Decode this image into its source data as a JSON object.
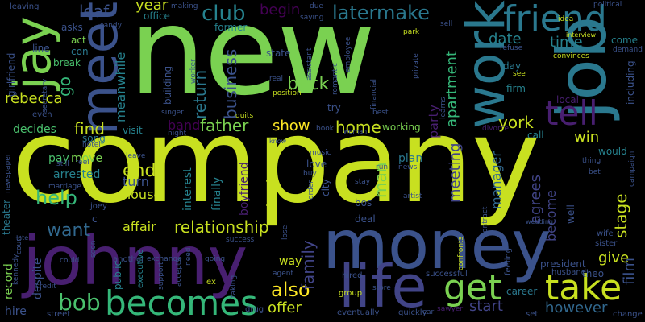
{
  "words": {
    "new": "new",
    "company": "company",
    "johnny": "johnny",
    "money": "money",
    "job": "job",
    "work": "work",
    "meet": "meet",
    "jay": "jay",
    "friend": "friend",
    "tell": "tell",
    "life": "life",
    "get": "get",
    "take": "take",
    "becomes": "becomes",
    "bob": "bob",
    "also": "also",
    "relationship": "relationship",
    "latermake": "latermake",
    "club": "club",
    "help": "help",
    "want": "want",
    "end": "end",
    "father": "father",
    "show": "show",
    "home": "home",
    "find": "find",
    "back": "back",
    "family": "family",
    "man": "man",
    "year": "year",
    "leaf": "leaf",
    "begin": "begin",
    "return": "return",
    "business": "business",
    "band": "band",
    "meanwhile": "meanwhile",
    "go": "go",
    "rebecca": "rebecca",
    "apartment": "apartment",
    "date": "date",
    "time": "time",
    "york": "york",
    "win": "win",
    "film": "film",
    "give": "give",
    "stage": "stage",
    "however": "however",
    "start": "start",
    "offer": "offer",
    "meeting": "meeting",
    "manager": "manager",
    "become": "become",
    "agrees": "agrees",
    "party": "party",
    "affair": "affair",
    "house": "house",
    "turn": "turn",
    "arrested": "arrested",
    "pay": "pay",
    "move": "move",
    "song": "song",
    "visit": "visit",
    "decides": "decides",
    "break": "break",
    "line": "line",
    "asks": "asks",
    "act": "act",
    "office": "office",
    "former": "former",
    "state": "state",
    "working": "working",
    "plan": "plan",
    "love": "love",
    "interest": "interest",
    "finally": "finally",
    "daughter": "daughter",
    "boyfriend": "boyfriend",
    "way": "way",
    "record": "record",
    "despite": "despite",
    "hire": "hire",
    "theater": "theater",
    "career": "career",
    "president": "president",
    "local": "local",
    "firm": "firm",
    "day": "day",
    "come": "come",
    "including": "including",
    "call": "call",
    "would": "would",
    "deal": "deal",
    "bos": "bos",
    "public": "public",
    "executive": "executive",
    "girlfriend": "girlfriend",
    "leaving": "leaving",
    "even": "even",
    "con": "con",
    "try": "try",
    "quits": "quits",
    "position": "position",
    "idea": "idea",
    "political": "political",
    "interview": "interview",
    "demand": "demand",
    "refuse": "refuse",
    "convinces": "convinces",
    "see": "see",
    "divorce": "divorce",
    "thing": "thing",
    "bet": "bet",
    "campaign": "campaign",
    "wife": "wife",
    "sister": "sister",
    "theo": "theo",
    "well": "well",
    "husband": "husband",
    "feeling": "feeling",
    "successful": "successful",
    "hired": "hired",
    "group": "group",
    "quickly": "quickly",
    "eventually": "eventually",
    "street": "street",
    "credit": "credit",
    "drug": "drug",
    "set": "set",
    "change": "change",
    "sawyer": "sawyer",
    "store": "store",
    "car": "car",
    "also_kennedy": "kennedy",
    "support": "support",
    "accepts": "accepts",
    "need": "need",
    "taking": "taking",
    "ex": "ex",
    "agent": "agent",
    "another": "another",
    "exchange": "exchange",
    "going": "going",
    "soon": "soon",
    "could": "could",
    "court": "court",
    "late": "late",
    "joey": "joey",
    "marriage": "marriage",
    "still": "still",
    "feel": "feel",
    "hotel": "hotel",
    "leave": "leave",
    "night": "night",
    "singer": "singer",
    "building": "building",
    "real": "real",
    "worker": "worker",
    "making": "making",
    "sandy": "sandy",
    "due": "due",
    "saying": "saying",
    "sell": "sell",
    "park": "park",
    "employee": "employee",
    "private": "private",
    "romantic": "romantic",
    "assistant": "assistant",
    "financial": "financial",
    "best": "best",
    "learns": "learns",
    "book": "book",
    "woman": "woman",
    "music": "music",
    "know": "know",
    "news": "news",
    "artist": "artist",
    "stay": "stay",
    "run": "run",
    "buy": "buy",
    "order": "order",
    "city": "city",
    "contract": "contract",
    "confronts": "confronts",
    "wedding": "wedding",
    "secretary": "secretary",
    "newspaper": "newspaper",
    "c": "c",
    "lose": "lose",
    "success": "success"
  }
}
